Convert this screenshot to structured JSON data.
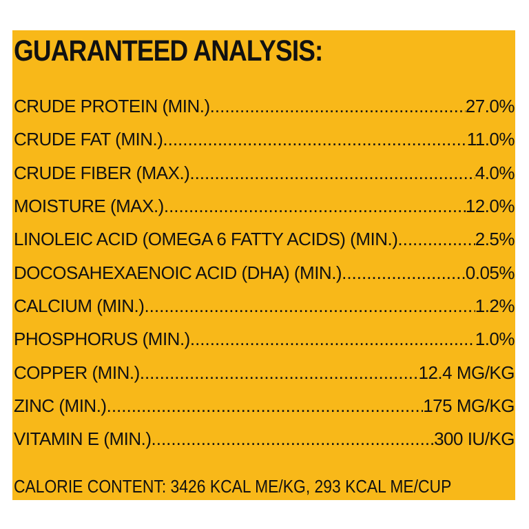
{
  "panel": {
    "background": "#f8b819",
    "text_color": "#111111"
  },
  "title": "GUARANTEED ANALYSIS:",
  "rows": [
    {
      "label": "CRUDE PROTEIN (MIN.)",
      "value": "27.0%"
    },
    {
      "label": "CRUDE FAT (MIN.)",
      "value": "11.0%"
    },
    {
      "label": "CRUDE FIBER (MAX.)",
      "value": "4.0%"
    },
    {
      "label": "MOISTURE (MAX.)",
      "value": "12.0%"
    },
    {
      "label": "LINOLEIC ACID (OMEGA 6 FATTY ACIDS) (MIN.)",
      "value": "2.5%"
    },
    {
      "label": "DOCOSAHEXAENOIC ACID (DHA) (MIN.)",
      "value": "0.05%"
    },
    {
      "label": "CALCIUM (MIN.)",
      "value": "1.2%"
    },
    {
      "label": "PHOSPHORUS (MIN.)",
      "value": "1.0%"
    },
    {
      "label": "COPPER (MIN.)",
      "value": "12.4 MG/KG"
    },
    {
      "label": "ZINC (MIN.)",
      "value": "175 MG/KG"
    },
    {
      "label": "VITAMIN E (MIN.)",
      "value": "300 IU/KG"
    }
  ],
  "calorie_content": "CALORIE CONTENT: 3426 KCAL ME/KG, 293 KCAL ME/CUP"
}
